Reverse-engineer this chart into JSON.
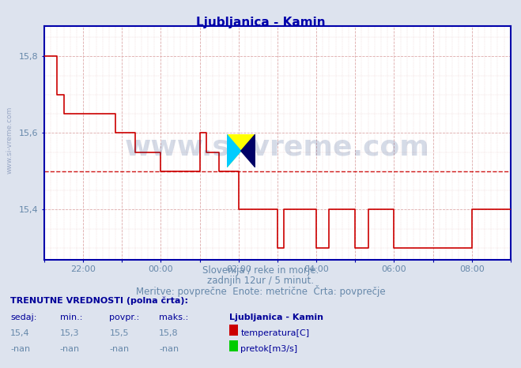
{
  "title": "Ljubljanica - Kamin",
  "subtitle1": "Slovenija / reke in morje.",
  "subtitle2": "zadnjih 12ur / 5 minut.",
  "subtitle3": "Meritve: povprečne  Enote: metrične  Črta: povprečje",
  "ylabel_ticks": [
    15.4,
    15.6,
    15.8
  ],
  "ylim": [
    15.27,
    15.88
  ],
  "xlim": [
    0,
    144
  ],
  "avg_line": 15.5,
  "background_color": "#dde3ee",
  "plot_bg_color": "#ffffff",
  "line_color": "#cc0000",
  "avg_line_color": "#cc0000",
  "grid_color_h": "#ddaaaa",
  "grid_color_v": "#ccccdd",
  "axis_color": "#0000aa",
  "title_color": "#0000aa",
  "label_color": "#6688aa",
  "text_color_dark": "#000099",
  "watermark_color": "#1a3a7a",
  "watermark_alpha": 0.18,
  "sedaj": "15,4",
  "min_val": "15,3",
  "povpr": "15,5",
  "maks": "15,8",
  "station": "Ljubljanica - Kamin",
  "series1_label": "temperatura[C]",
  "series2_label": "pretok[m3/s]",
  "series1_color": "#cc0000",
  "series2_color": "#00cc00",
  "temp_data": [
    [
      0,
      15.8
    ],
    [
      4,
      15.8
    ],
    [
      4,
      15.7
    ],
    [
      6,
      15.7
    ],
    [
      6,
      15.65
    ],
    [
      22,
      15.65
    ],
    [
      22,
      15.6
    ],
    [
      28,
      15.6
    ],
    [
      28,
      15.55
    ],
    [
      36,
      15.55
    ],
    [
      36,
      15.5
    ],
    [
      48,
      15.5
    ],
    [
      48,
      15.6
    ],
    [
      50,
      15.6
    ],
    [
      50,
      15.55
    ],
    [
      54,
      15.55
    ],
    [
      54,
      15.5
    ],
    [
      60,
      15.5
    ],
    [
      60,
      15.4
    ],
    [
      72,
      15.4
    ],
    [
      72,
      15.3
    ],
    [
      74,
      15.3
    ],
    [
      74,
      15.4
    ],
    [
      84,
      15.4
    ],
    [
      84,
      15.3
    ],
    [
      88,
      15.3
    ],
    [
      88,
      15.4
    ],
    [
      96,
      15.4
    ],
    [
      96,
      15.3
    ],
    [
      100,
      15.3
    ],
    [
      100,
      15.4
    ],
    [
      108,
      15.4
    ],
    [
      108,
      15.3
    ],
    [
      132,
      15.3
    ],
    [
      132,
      15.4
    ],
    [
      144,
      15.4
    ]
  ],
  "tick_positions": [
    0,
    12,
    24,
    36,
    48,
    60,
    72,
    84,
    96,
    108,
    120,
    132,
    144
  ],
  "tick_labels": [
    "",
    "22:00",
    "",
    "00:00",
    "",
    "02:00",
    "",
    "04:00",
    "",
    "06:00",
    "",
    "08:00",
    ""
  ]
}
